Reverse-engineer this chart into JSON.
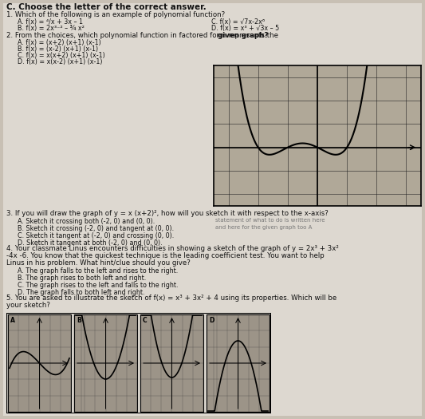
{
  "bg_color": "#c8c0b4",
  "paper_color": "#ddd8d0",
  "title": "C. Choose the letter of the correct answer.",
  "q1_text": "1. Which of the following is an example of polynomial function?",
  "q1_a": "A. f(x) = ⁴/x + 3x – 1",
  "q1_b": "B. f(x) = 2x³⁻² – ¾ x²",
  "q1_c": "C. f(x) = √7x-2x⁶",
  "q1_d": "D. f(x) = x³ + √3x – 5",
  "q2_label": "2. From the choices, which polynomial function in factored form represents the ",
  "q2_bold": "given graph?",
  "q2_a": "A. f(x) = (x+2) (x+1) (x-1)",
  "q2_b": "B. f(x) = (x-2) (x+1) (x-1)",
  "q2_c": "C. f(x) = x(x+2) (x+1) (x-1)",
  "q2_d": "D. f(x) = x(x-2) (x+1) (x-1)",
  "q3_line1": "3. If you will draw the graph of y = x (x+2)², how will you sketch it with respect to the x-axis?",
  "q3_a": "A. Sketch it crossing both (-2, 0) and (0, 0).",
  "q3_b": "B. Sketch it crossing (-2, 0) and tangent at (0, 0).",
  "q3_c": "C. Sketch it tangent at (-2, 0) and crossing (0, 0).",
  "q3_d": "D. Sketch it tangent at both (-2, 0) and (0, 0).",
  "q4_line1": "4. Your classmate Linus encounters difficulties in showing a sketch of the graph of y = 2x³ + 3x²",
  "q4_line2": "-4x -6. You know that the quickest technique is the leading coefficient test. You want to help",
  "q4_line3": "Linus in his problem. What hint/clue should you give?",
  "q4_a": "A. The graph falls to the left and rises to the right.",
  "q4_b": "B. The graph rises to both left and right.",
  "q4_c": "C. The graph rises to the left and falls to the right.",
  "q4_d": "D. The graph falls to both left and right.",
  "q5_line1": "5. You are asked to illustrate the sketch of f(x) = x³ + 3x² + 4 using its properties. Which will be",
  "q5_line2": "your sketch?",
  "right_note1": "statement of what to do is written here",
  "right_note2": "and here for the given graph too A",
  "fs_title": 7.5,
  "fs_body": 6.2,
  "fs_small": 5.8
}
